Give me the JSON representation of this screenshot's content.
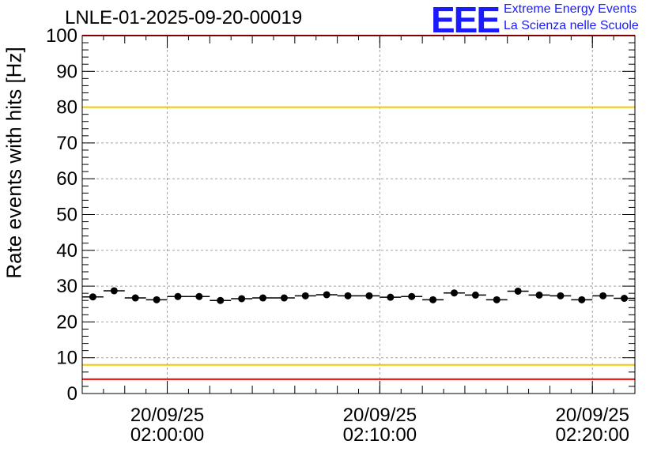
{
  "title": "LNLE-01-2025-09-20-00019",
  "logo": {
    "mark": "EEE",
    "line1": "Extreme Energy Events",
    "line2": "La Scienza nelle Scuole",
    "color": "#1a1aff"
  },
  "chart_data": {
    "type": "scatter",
    "ylabel": "Rate events with hits [Hz]",
    "ylim": [
      0,
      100
    ],
    "y_ticks": [
      0,
      10,
      20,
      30,
      40,
      50,
      60,
      70,
      80,
      90,
      100
    ],
    "xlim": [
      "01:56:00",
      "02:22:00"
    ],
    "x_ticks": [
      {
        "time": "02:00:00",
        "date": "20/09/25"
      },
      {
        "time": "02:10:00",
        "date": "20/09/25"
      },
      {
        "time": "02:20:00",
        "date": "20/09/25"
      }
    ],
    "grid": true,
    "bin_width_minutes": 1,
    "series": [
      {
        "x": [
          "01:56:30",
          "01:57:30",
          "01:58:30",
          "01:59:30",
          "02:00:30",
          "02:01:30",
          "02:02:30",
          "02:03:30",
          "02:04:30",
          "02:05:30",
          "02:06:30",
          "02:07:30",
          "02:08:30",
          "02:09:30",
          "02:10:30",
          "02:11:30",
          "02:12:30",
          "02:13:30",
          "02:14:30",
          "02:15:30",
          "02:16:30",
          "02:17:30",
          "02:18:30",
          "02:19:30",
          "02:20:30",
          "02:21:30"
        ],
        "y": [
          27.0,
          28.7,
          26.7,
          26.2,
          27.1,
          27.1,
          26.0,
          26.5,
          26.7,
          26.7,
          27.3,
          27.6,
          27.3,
          27.3,
          26.9,
          27.1,
          26.2,
          28.1,
          27.5,
          26.2,
          28.6,
          27.5,
          27.3,
          26.2,
          27.3,
          26.6
        ]
      }
    ],
    "reference_lines": [
      {
        "y": 100,
        "color": "#ff0000"
      },
      {
        "y": 80,
        "color": "#f0c800"
      },
      {
        "y": 8,
        "color": "#f0c800"
      },
      {
        "y": 4,
        "color": "#ff0000"
      }
    ]
  }
}
